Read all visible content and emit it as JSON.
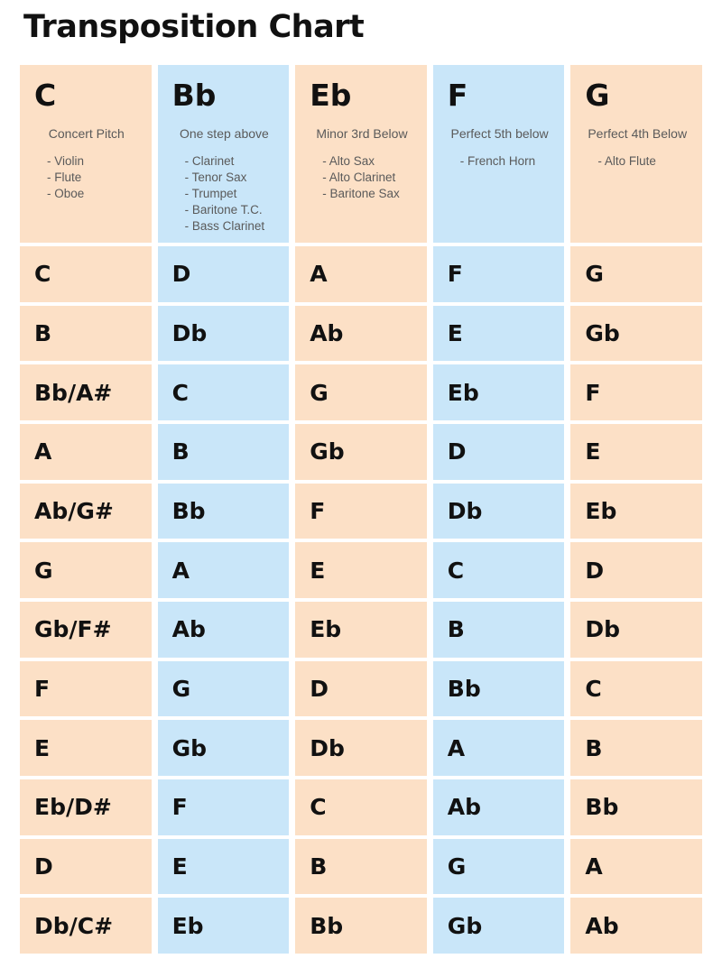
{
  "title": "Transposition Chart",
  "colors": {
    "peach": "#fce0c6",
    "blue": "#c9e6f9"
  },
  "columns": [
    {
      "key": "C",
      "description": "Concert Pitch",
      "instruments": [
        "Violin",
        "Flute",
        "Oboe"
      ],
      "color": "peach"
    },
    {
      "key": "Bb",
      "description": "One step above",
      "instruments": [
        "Clarinet",
        "Tenor Sax",
        "Trumpet",
        "Baritone T.C.",
        "Bass Clarinet"
      ],
      "color": "blue"
    },
    {
      "key": "Eb",
      "description": "Minor 3rd Below",
      "instruments": [
        "Alto Sax",
        "Alto Clarinet",
        "Baritone Sax"
      ],
      "color": "peach"
    },
    {
      "key": "F",
      "description": "Perfect 5th below",
      "instruments": [
        "French Horn"
      ],
      "color": "blue"
    },
    {
      "key": "G",
      "description": "Perfect 4th Below",
      "instruments": [
        "Alto Flute"
      ],
      "color": "peach"
    }
  ],
  "rows": [
    [
      "C",
      "D",
      "A",
      "F",
      "G"
    ],
    [
      "B",
      "Db",
      "Ab",
      "E",
      "Gb"
    ],
    [
      "Bb/A#",
      "C",
      "G",
      "Eb",
      "F"
    ],
    [
      "A",
      "B",
      "Gb",
      "D",
      "E"
    ],
    [
      "Ab/G#",
      "Bb",
      "F",
      "Db",
      "Eb"
    ],
    [
      "G",
      "A",
      "E",
      "C",
      "D"
    ],
    [
      "Gb/F#",
      "Ab",
      "Eb",
      "B",
      "Db"
    ],
    [
      "F",
      "G",
      "D",
      "Bb",
      "C"
    ],
    [
      "E",
      "Gb",
      "Db",
      "A",
      "B"
    ],
    [
      "Eb/D#",
      "F",
      "C",
      "Ab",
      "Bb"
    ],
    [
      "D",
      "E",
      "B",
      "G",
      "A"
    ],
    [
      "Db/C#",
      "Eb",
      "Bb",
      "Gb",
      "Ab"
    ]
  ]
}
